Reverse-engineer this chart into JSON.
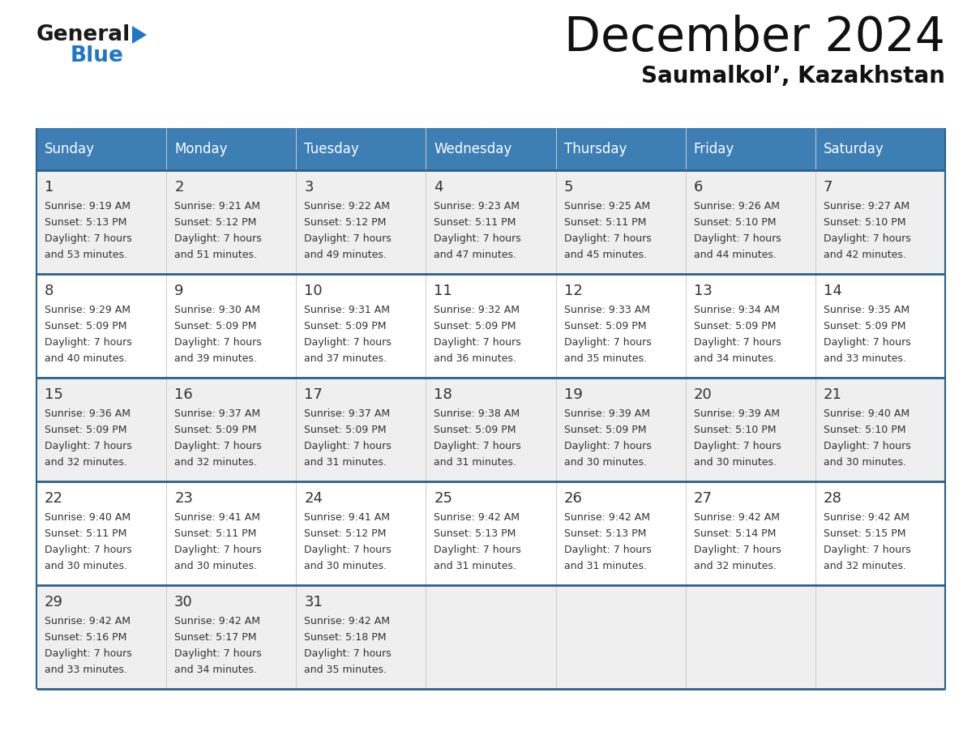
{
  "title": "December 2024",
  "subtitle": "Saumalkol’, Kazakhstan",
  "days_of_week": [
    "Sunday",
    "Monday",
    "Tuesday",
    "Wednesday",
    "Thursday",
    "Friday",
    "Saturday"
  ],
  "header_bg_color": "#3d7eb5",
  "header_text_color": "#ffffff",
  "row_bg_odd": "#efefef",
  "row_bg_even": "#ffffff",
  "row_separator_color": "#2c5f8a",
  "cell_line_color": "#cccccc",
  "text_color": "#333333",
  "logo_general_color": "#1a1a1a",
  "logo_blue_color": "#2176c7",
  "title_color": "#111111",
  "subtitle_color": "#111111",
  "weeks": [
    [
      {
        "day": 1,
        "sunrise": "9:19 AM",
        "sunset": "5:13 PM",
        "daylight_hours": 7,
        "daylight_minutes": 53
      },
      {
        "day": 2,
        "sunrise": "9:21 AM",
        "sunset": "5:12 PM",
        "daylight_hours": 7,
        "daylight_minutes": 51
      },
      {
        "day": 3,
        "sunrise": "9:22 AM",
        "sunset": "5:12 PM",
        "daylight_hours": 7,
        "daylight_minutes": 49
      },
      {
        "day": 4,
        "sunrise": "9:23 AM",
        "sunset": "5:11 PM",
        "daylight_hours": 7,
        "daylight_minutes": 47
      },
      {
        "day": 5,
        "sunrise": "9:25 AM",
        "sunset": "5:11 PM",
        "daylight_hours": 7,
        "daylight_minutes": 45
      },
      {
        "day": 6,
        "sunrise": "9:26 AM",
        "sunset": "5:10 PM",
        "daylight_hours": 7,
        "daylight_minutes": 44
      },
      {
        "day": 7,
        "sunrise": "9:27 AM",
        "sunset": "5:10 PM",
        "daylight_hours": 7,
        "daylight_minutes": 42
      }
    ],
    [
      {
        "day": 8,
        "sunrise": "9:29 AM",
        "sunset": "5:09 PM",
        "daylight_hours": 7,
        "daylight_minutes": 40
      },
      {
        "day": 9,
        "sunrise": "9:30 AM",
        "sunset": "5:09 PM",
        "daylight_hours": 7,
        "daylight_minutes": 39
      },
      {
        "day": 10,
        "sunrise": "9:31 AM",
        "sunset": "5:09 PM",
        "daylight_hours": 7,
        "daylight_minutes": 37
      },
      {
        "day": 11,
        "sunrise": "9:32 AM",
        "sunset": "5:09 PM",
        "daylight_hours": 7,
        "daylight_minutes": 36
      },
      {
        "day": 12,
        "sunrise": "9:33 AM",
        "sunset": "5:09 PM",
        "daylight_hours": 7,
        "daylight_minutes": 35
      },
      {
        "day": 13,
        "sunrise": "9:34 AM",
        "sunset": "5:09 PM",
        "daylight_hours": 7,
        "daylight_minutes": 34
      },
      {
        "day": 14,
        "sunrise": "9:35 AM",
        "sunset": "5:09 PM",
        "daylight_hours": 7,
        "daylight_minutes": 33
      }
    ],
    [
      {
        "day": 15,
        "sunrise": "9:36 AM",
        "sunset": "5:09 PM",
        "daylight_hours": 7,
        "daylight_minutes": 32
      },
      {
        "day": 16,
        "sunrise": "9:37 AM",
        "sunset": "5:09 PM",
        "daylight_hours": 7,
        "daylight_minutes": 32
      },
      {
        "day": 17,
        "sunrise": "9:37 AM",
        "sunset": "5:09 PM",
        "daylight_hours": 7,
        "daylight_minutes": 31
      },
      {
        "day": 18,
        "sunrise": "9:38 AM",
        "sunset": "5:09 PM",
        "daylight_hours": 7,
        "daylight_minutes": 31
      },
      {
        "day": 19,
        "sunrise": "9:39 AM",
        "sunset": "5:09 PM",
        "daylight_hours": 7,
        "daylight_minutes": 30
      },
      {
        "day": 20,
        "sunrise": "9:39 AM",
        "sunset": "5:10 PM",
        "daylight_hours": 7,
        "daylight_minutes": 30
      },
      {
        "day": 21,
        "sunrise": "9:40 AM",
        "sunset": "5:10 PM",
        "daylight_hours": 7,
        "daylight_minutes": 30
      }
    ],
    [
      {
        "day": 22,
        "sunrise": "9:40 AM",
        "sunset": "5:11 PM",
        "daylight_hours": 7,
        "daylight_minutes": 30
      },
      {
        "day": 23,
        "sunrise": "9:41 AM",
        "sunset": "5:11 PM",
        "daylight_hours": 7,
        "daylight_minutes": 30
      },
      {
        "day": 24,
        "sunrise": "9:41 AM",
        "sunset": "5:12 PM",
        "daylight_hours": 7,
        "daylight_minutes": 30
      },
      {
        "day": 25,
        "sunrise": "9:42 AM",
        "sunset": "5:13 PM",
        "daylight_hours": 7,
        "daylight_minutes": 31
      },
      {
        "day": 26,
        "sunrise": "9:42 AM",
        "sunset": "5:13 PM",
        "daylight_hours": 7,
        "daylight_minutes": 31
      },
      {
        "day": 27,
        "sunrise": "9:42 AM",
        "sunset": "5:14 PM",
        "daylight_hours": 7,
        "daylight_minutes": 32
      },
      {
        "day": 28,
        "sunrise": "9:42 AM",
        "sunset": "5:15 PM",
        "daylight_hours": 7,
        "daylight_minutes": 32
      }
    ],
    [
      {
        "day": 29,
        "sunrise": "9:42 AM",
        "sunset": "5:16 PM",
        "daylight_hours": 7,
        "daylight_minutes": 33
      },
      {
        "day": 30,
        "sunrise": "9:42 AM",
        "sunset": "5:17 PM",
        "daylight_hours": 7,
        "daylight_minutes": 34
      },
      {
        "day": 31,
        "sunrise": "9:42 AM",
        "sunset": "5:18 PM",
        "daylight_hours": 7,
        "daylight_minutes": 35
      },
      null,
      null,
      null,
      null
    ]
  ]
}
